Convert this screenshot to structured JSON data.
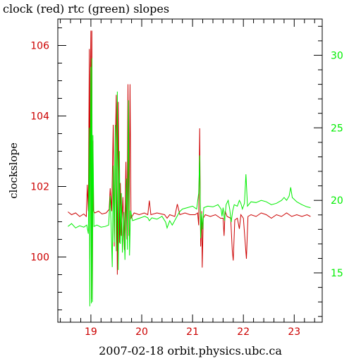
{
  "colors": {
    "clock": "#cc0000",
    "rtc": "#00ee00",
    "axis": "#000000",
    "background": "#ffffff"
  },
  "chart_data": {
    "type": "line",
    "title": "clock (red) rtc (green) slopes",
    "xlabel": "2007-02-18  orbit.physics.ubc.ca",
    "ylabel": "clockslope",
    "xlim": [
      18.35,
      23.55
    ],
    "ylim_left": [
      98.15,
      106.75
    ],
    "ylim_right": [
      11.6,
      32.5
    ],
    "x_ticks": [
      19,
      20,
      21,
      22,
      23
    ],
    "y_left_ticks": [
      100,
      102,
      104,
      106
    ],
    "y_right_ticks": [
      15,
      20,
      25,
      30
    ],
    "grid": false,
    "series": [
      {
        "name": "clock",
        "axis": "left",
        "points": [
          [
            18.55,
            101.28
          ],
          [
            18.62,
            101.2
          ],
          [
            18.7,
            101.25
          ],
          [
            18.78,
            101.15
          ],
          [
            18.86,
            101.22
          ],
          [
            18.91,
            101.15
          ],
          [
            18.93,
            102.05
          ],
          [
            18.95,
            101.3
          ],
          [
            18.97,
            105.9
          ],
          [
            18.98,
            99.95
          ],
          [
            18.99,
            105.1
          ],
          [
            19.0,
            106.42
          ],
          [
            19.01,
            98.8
          ],
          [
            19.02,
            106.42
          ],
          [
            19.03,
            98.95
          ],
          [
            19.04,
            103.3
          ],
          [
            19.05,
            101.3
          ],
          [
            19.08,
            101.25
          ],
          [
            19.15,
            101.3
          ],
          [
            19.22,
            101.22
          ],
          [
            19.3,
            101.25
          ],
          [
            19.36,
            101.35
          ],
          [
            19.38,
            101.95
          ],
          [
            19.41,
            101.3
          ],
          [
            19.44,
            103.75
          ],
          [
            19.46,
            100.3
          ],
          [
            19.48,
            103.1
          ],
          [
            19.5,
            104.6
          ],
          [
            19.52,
            99.5
          ],
          [
            19.54,
            104.4
          ],
          [
            19.56,
            100.4
          ],
          [
            19.58,
            102.1
          ],
          [
            19.6,
            100.6
          ],
          [
            19.63,
            101.7
          ],
          [
            19.66,
            100.2
          ],
          [
            19.69,
            102.7
          ],
          [
            19.71,
            100.5
          ],
          [
            19.73,
            104.9
          ],
          [
            19.75,
            100.6
          ],
          [
            19.77,
            104.9
          ],
          [
            19.79,
            101.1
          ],
          [
            19.85,
            101.25
          ],
          [
            19.95,
            101.2
          ],
          [
            20.05,
            101.25
          ],
          [
            20.12,
            101.2
          ],
          [
            20.15,
            101.6
          ],
          [
            20.18,
            101.2
          ],
          [
            20.3,
            101.25
          ],
          [
            20.45,
            101.2
          ],
          [
            20.5,
            101.1
          ],
          [
            20.55,
            101.2
          ],
          [
            20.65,
            101.15
          ],
          [
            20.7,
            101.5
          ],
          [
            20.75,
            101.2
          ],
          [
            20.85,
            101.25
          ],
          [
            20.95,
            101.2
          ],
          [
            21.05,
            101.2
          ],
          [
            21.1,
            101.25
          ],
          [
            21.12,
            100.9
          ],
          [
            21.14,
            103.65
          ],
          [
            21.16,
            100.3
          ],
          [
            21.18,
            101.3
          ],
          [
            21.19,
            99.7
          ],
          [
            21.21,
            101.1
          ],
          [
            21.25,
            101.2
          ],
          [
            21.35,
            101.15
          ],
          [
            21.45,
            101.2
          ],
          [
            21.55,
            101.1
          ],
          [
            21.6,
            101.1
          ],
          [
            21.62,
            100.6
          ],
          [
            21.64,
            101.3
          ],
          [
            21.68,
            101.15
          ],
          [
            21.75,
            101.1
          ],
          [
            21.78,
            100.2
          ],
          [
            21.8,
            99.9
          ],
          [
            21.83,
            101.05
          ],
          [
            21.88,
            101.1
          ],
          [
            21.92,
            100.8
          ],
          [
            21.95,
            101.2
          ],
          [
            22.0,
            101.1
          ],
          [
            22.03,
            100.5
          ],
          [
            22.06,
            99.95
          ],
          [
            22.09,
            101.15
          ],
          [
            22.15,
            101.2
          ],
          [
            22.25,
            101.15
          ],
          [
            22.35,
            101.25
          ],
          [
            22.45,
            101.2
          ],
          [
            22.55,
            101.1
          ],
          [
            22.65,
            101.2
          ],
          [
            22.75,
            101.15
          ],
          [
            22.85,
            101.25
          ],
          [
            22.95,
            101.15
          ],
          [
            23.05,
            101.2
          ],
          [
            23.15,
            101.15
          ],
          [
            23.25,
            101.2
          ],
          [
            23.32,
            101.15
          ]
        ]
      },
      {
        "name": "rtc",
        "axis": "right",
        "points": [
          [
            18.55,
            18.2
          ],
          [
            18.62,
            18.4
          ],
          [
            18.7,
            18.1
          ],
          [
            18.78,
            18.25
          ],
          [
            18.86,
            18.15
          ],
          [
            18.92,
            18.3
          ],
          [
            18.95,
            17.7
          ],
          [
            18.97,
            25.0
          ],
          [
            18.98,
            12.7
          ],
          [
            18.99,
            23.5
          ],
          [
            19.0,
            29.2
          ],
          [
            19.01,
            12.9
          ],
          [
            19.02,
            29.8
          ],
          [
            19.03,
            13.0
          ],
          [
            19.04,
            24.5
          ],
          [
            19.06,
            18.2
          ],
          [
            19.12,
            18.3
          ],
          [
            19.2,
            18.15
          ],
          [
            19.28,
            18.2
          ],
          [
            19.35,
            18.3
          ],
          [
            19.38,
            20.3
          ],
          [
            19.4,
            18.1
          ],
          [
            19.42,
            15.4
          ],
          [
            19.44,
            22.4
          ],
          [
            19.46,
            17.1
          ],
          [
            19.48,
            25.2
          ],
          [
            19.5,
            16.5
          ],
          [
            19.52,
            27.5
          ],
          [
            19.54,
            15.2
          ],
          [
            19.56,
            23.4
          ],
          [
            19.58,
            17.0
          ],
          [
            19.6,
            20.5
          ],
          [
            19.62,
            16.4
          ],
          [
            19.65,
            19.2
          ],
          [
            19.67,
            15.9
          ],
          [
            19.7,
            21.5
          ],
          [
            19.72,
            16.6
          ],
          [
            19.74,
            26.9
          ],
          [
            19.76,
            16.2
          ],
          [
            19.78,
            19.3
          ],
          [
            19.82,
            18.6
          ],
          [
            19.9,
            18.7
          ],
          [
            19.98,
            18.8
          ],
          [
            20.06,
            18.9
          ],
          [
            20.12,
            18.8
          ],
          [
            20.15,
            18.6
          ],
          [
            20.2,
            18.8
          ],
          [
            20.3,
            18.7
          ],
          [
            20.4,
            18.9
          ],
          [
            20.47,
            18.5
          ],
          [
            20.5,
            18.1
          ],
          [
            20.55,
            18.6
          ],
          [
            20.6,
            18.3
          ],
          [
            20.68,
            18.8
          ],
          [
            20.74,
            19.2
          ],
          [
            20.8,
            19.4
          ],
          [
            20.9,
            19.5
          ],
          [
            21.0,
            19.6
          ],
          [
            21.08,
            19.4
          ],
          [
            21.12,
            20.5
          ],
          [
            21.14,
            23.1
          ],
          [
            21.16,
            17.4
          ],
          [
            21.18,
            19.1
          ],
          [
            21.2,
            18.0
          ],
          [
            21.22,
            19.5
          ],
          [
            21.3,
            19.6
          ],
          [
            21.4,
            19.55
          ],
          [
            21.5,
            19.7
          ],
          [
            21.56,
            19.4
          ],
          [
            21.58,
            18.9
          ],
          [
            21.6,
            19.5
          ],
          [
            21.63,
            18.6
          ],
          [
            21.66,
            19.7
          ],
          [
            21.7,
            20.0
          ],
          [
            21.73,
            19.4
          ],
          [
            21.76,
            18.5
          ],
          [
            21.79,
            19.3
          ],
          [
            21.82,
            19.7
          ],
          [
            21.88,
            19.6
          ],
          [
            21.92,
            20.0
          ],
          [
            21.95,
            19.8
          ],
          [
            21.98,
            19.4
          ],
          [
            22.02,
            19.8
          ],
          [
            22.05,
            21.8
          ],
          [
            22.08,
            19.6
          ],
          [
            22.15,
            19.9
          ],
          [
            22.25,
            19.85
          ],
          [
            22.35,
            20.0
          ],
          [
            22.45,
            19.9
          ],
          [
            22.55,
            19.7
          ],
          [
            22.65,
            19.8
          ],
          [
            22.75,
            20.0
          ],
          [
            22.8,
            20.2
          ],
          [
            22.85,
            20.0
          ],
          [
            22.9,
            20.3
          ],
          [
            22.93,
            20.9
          ],
          [
            22.96,
            20.2
          ],
          [
            23.05,
            19.9
          ],
          [
            23.15,
            19.7
          ],
          [
            23.25,
            19.55
          ],
          [
            23.32,
            19.5
          ]
        ]
      }
    ]
  }
}
